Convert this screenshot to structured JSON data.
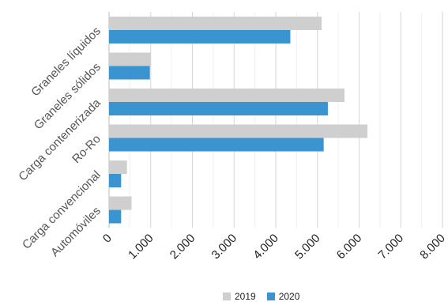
{
  "chart_data": {
    "type": "bar",
    "orientation": "horizontal",
    "categories": [
      "Graneles líquidos",
      "Graneles sólidos",
      "Carga contenerizada",
      "Ro-Ro",
      "Carga convencional",
      "Automóviles"
    ],
    "series": [
      {
        "name": "2019",
        "color": "#cfcfcf",
        "values": [
          5100,
          1000,
          5650,
          6200,
          430,
          540
        ]
      },
      {
        "name": "2020",
        "color": "#3a94d0",
        "values": [
          4350,
          980,
          5250,
          5150,
          290,
          290
        ]
      }
    ],
    "xlim": [
      0,
      8000
    ],
    "xticks": [
      "0",
      "1.000",
      "2.000",
      "3.000",
      "4.000",
      "5.000",
      "6.000",
      "7.000",
      "8.000"
    ],
    "grid": true,
    "legend": "bottom"
  }
}
